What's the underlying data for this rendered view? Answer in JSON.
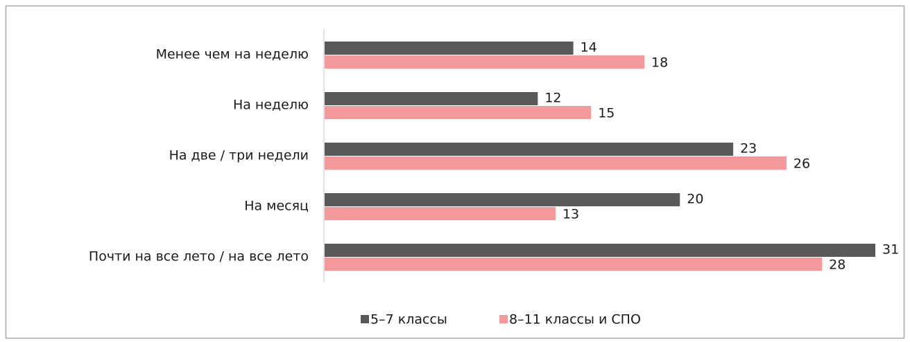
{
  "chart_data": {
    "type": "bar",
    "orientation": "horizontal",
    "categories": [
      "Менее чем на неделю",
      "На неделю",
      "На две / три недели",
      "На месяц",
      "Почти на все лето / на все лето"
    ],
    "series": [
      {
        "name": "5–7 классы",
        "color": "#595959",
        "values": [
          14,
          12,
          23,
          20,
          31
        ]
      },
      {
        "name": "8–11 классы и СПО",
        "color": "#f4999b",
        "values": [
          18,
          15,
          26,
          13,
          28
        ]
      }
    ]
  }
}
